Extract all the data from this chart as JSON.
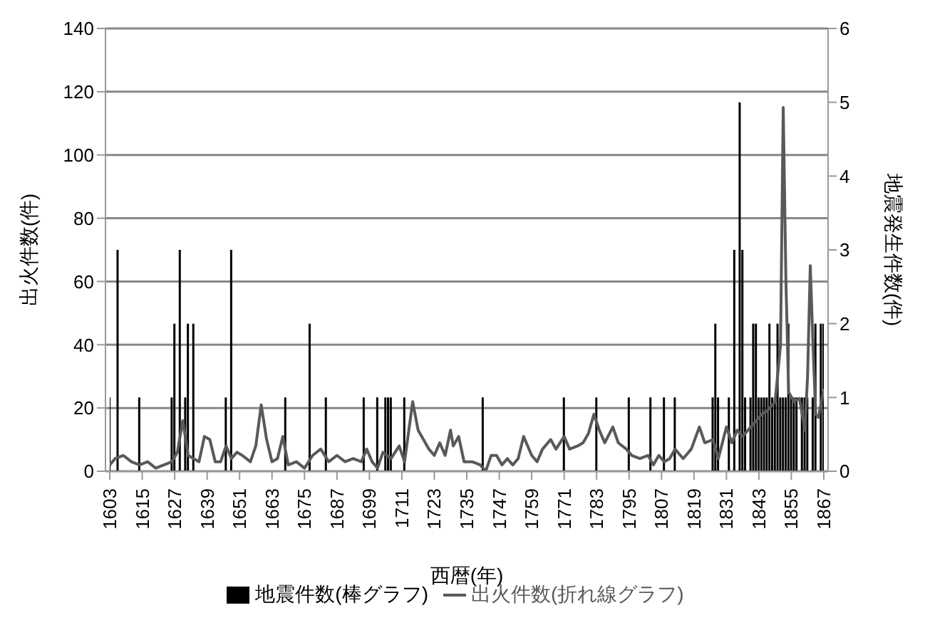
{
  "chart_data": {
    "type": "bar",
    "xlabel": "西暦(年)",
    "ylabel": "出火件数(件)",
    "y2label": "地震発生件数(件)",
    "xlim": [
      1603,
      1867
    ],
    "xticks": [
      1603,
      1615,
      1627,
      1639,
      1651,
      1663,
      1675,
      1687,
      1699,
      1711,
      1723,
      1735,
      1747,
      1759,
      1771,
      1783,
      1795,
      1807,
      1819,
      1831,
      1843,
      1855,
      1867
    ],
    "ylim": [
      0,
      140
    ],
    "yticks": [
      0,
      20,
      40,
      60,
      80,
      100,
      120,
      140
    ],
    "y2lim": [
      0,
      6
    ],
    "y2ticks": [
      0,
      1,
      2,
      3,
      4,
      5,
      6
    ],
    "grid": "y",
    "legend": "bottom",
    "series": [
      {
        "name": "地震件数(棒グラフ)",
        "axis": "y2",
        "color": "#000000",
        "x": [
          1603,
          1606,
          1614,
          1626,
          1627,
          1629,
          1631,
          1632,
          1634,
          1646,
          1648,
          1668,
          1677,
          1683,
          1697,
          1702,
          1705,
          1706,
          1707,
          1712,
          1741,
          1771,
          1783,
          1795,
          1803,
          1808,
          1812,
          1826,
          1827,
          1828,
          1832,
          1834,
          1836,
          1837,
          1838,
          1840,
          1841,
          1842,
          1843,
          1844,
          1845,
          1846,
          1847,
          1848,
          1849,
          1850,
          1851,
          1852,
          1853,
          1854,
          1855,
          1856,
          1857,
          1859,
          1860,
          1861,
          1863,
          1864,
          1866,
          1867
        ],
        "values": [
          1,
          3,
          1,
          1,
          2,
          3,
          1,
          2,
          2,
          1,
          3,
          1,
          2,
          1,
          1,
          1,
          1,
          1,
          1,
          1,
          1,
          1,
          1,
          1,
          1,
          1,
          1,
          1,
          2,
          1,
          1,
          3,
          5,
          3,
          1,
          1,
          2,
          2,
          1,
          1,
          1,
          1,
          2,
          1,
          1,
          2,
          1,
          1,
          1,
          2,
          1,
          1,
          1,
          1,
          1,
          1,
          1,
          2,
          2,
          2
        ]
      },
      {
        "name": "出火件数(折れ線グラフ)",
        "type": "line",
        "color": "#595959",
        "x": [
          1603,
          1605,
          1608,
          1611,
          1614,
          1617,
          1620,
          1623,
          1626,
          1628,
          1630,
          1632,
          1634,
          1636,
          1638,
          1640,
          1642,
          1644,
          1646,
          1648,
          1650,
          1652,
          1655,
          1657,
          1659,
          1661,
          1663,
          1665,
          1667,
          1669,
          1672,
          1675,
          1678,
          1681,
          1684,
          1687,
          1690,
          1693,
          1696,
          1698,
          1700,
          1702,
          1704,
          1707,
          1710,
          1712,
          1715,
          1717,
          1719,
          1721,
          1723,
          1725,
          1727,
          1729,
          1730,
          1732,
          1734,
          1737,
          1740,
          1742,
          1744,
          1746,
          1748,
          1750,
          1752,
          1754,
          1756,
          1759,
          1761,
          1763,
          1766,
          1768,
          1771,
          1773,
          1776,
          1778,
          1780,
          1782,
          1784,
          1786,
          1789,
          1791,
          1794,
          1796,
          1799,
          1802,
          1804,
          1806,
          1808,
          1810,
          1812,
          1815,
          1818,
          1821,
          1823,
          1826,
          1828,
          1831,
          1833,
          1835,
          1837,
          1840,
          1842,
          1844,
          1846,
          1849,
          1851,
          1852,
          1853,
          1854,
          1856,
          1858,
          1860,
          1861,
          1862,
          1863,
          1864,
          1865,
          1867
        ],
        "values": [
          2,
          4,
          5,
          3,
          2,
          3,
          1,
          2,
          3,
          6,
          16,
          5,
          4,
          3,
          11,
          10,
          3,
          3,
          8,
          4,
          6,
          5,
          3,
          8,
          21,
          10,
          3,
          4,
          11,
          2,
          3,
          1,
          5,
          7,
          3,
          5,
          3,
          4,
          3,
          7,
          3,
          1,
          6,
          4,
          8,
          3,
          22,
          13,
          10,
          7,
          5,
          9,
          5,
          13,
          8,
          11,
          3,
          3,
          2,
          0,
          5,
          5,
          2,
          4,
          2,
          4,
          11,
          5,
          3,
          7,
          10,
          7,
          11,
          7,
          8,
          9,
          12,
          18,
          13,
          9,
          14,
          9,
          7,
          5,
          4,
          5,
          2,
          5,
          3,
          4,
          7,
          4,
          7,
          14,
          9,
          10,
          4,
          14,
          9,
          13,
          11,
          14,
          16,
          18,
          19,
          22,
          40,
          115,
          60,
          25,
          22,
          23,
          13,
          30,
          65,
          40,
          18,
          17,
          26
        ]
      }
    ]
  }
}
